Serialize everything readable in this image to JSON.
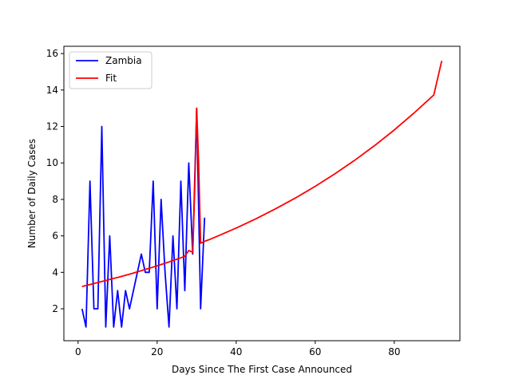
{
  "chart_data": {
    "type": "line",
    "title": "",
    "xlabel": "Days Since The First Case Announced",
    "ylabel": "Number of Daily Cases",
    "xlim": [
      -3.6,
      96.6
    ],
    "ylim": [
      0.25,
      16.4
    ],
    "xticks": [
      0,
      20,
      40,
      60,
      80
    ],
    "yticks": [
      2,
      4,
      6,
      8,
      10,
      12,
      14,
      16
    ],
    "grid": false,
    "legend": "upper-left",
    "series": [
      {
        "name": "Zambia",
        "color": "#0000ff",
        "x": [
          1,
          2,
          3,
          4,
          5,
          6,
          7,
          8,
          9,
          10,
          11,
          12,
          13,
          14,
          15,
          16,
          17,
          18,
          19,
          20,
          21,
          22,
          23,
          24,
          25,
          26,
          27,
          28,
          29,
          30,
          31,
          32
        ],
        "y": [
          2,
          1,
          9,
          2,
          2,
          12,
          1,
          6,
          1,
          3,
          1,
          3,
          2,
          3,
          4,
          5,
          4,
          4,
          9,
          2,
          8,
          4,
          1,
          6,
          2,
          9,
          3,
          10,
          5,
          13,
          2,
          7
        ]
      },
      {
        "name": "Fit",
        "color": "#ff0000",
        "x": [
          1,
          2,
          3,
          4,
          5,
          6,
          7,
          8,
          9,
          10,
          11,
          12,
          13,
          14,
          15,
          16,
          17,
          18,
          19,
          20,
          21,
          22,
          23,
          24,
          25,
          26,
          27,
          28,
          29,
          29.5,
          30,
          30.5,
          31,
          31.5,
          32,
          33,
          35,
          40,
          45,
          50,
          55,
          60,
          65,
          70,
          75,
          80,
          85,
          90,
          92
        ],
        "y": [
          3.22,
          3.28,
          3.33,
          3.39,
          3.44,
          3.5,
          3.55,
          3.61,
          3.67,
          3.72,
          3.78,
          3.84,
          3.9,
          3.96,
          4.03,
          4.09,
          4.16,
          4.22,
          4.29,
          4.36,
          4.43,
          4.5,
          4.57,
          4.65,
          4.72,
          4.8,
          4.88,
          5.2,
          5.1,
          8.5,
          13.0,
          10.0,
          5.6,
          5.65,
          5.7,
          5.78,
          5.96,
          6.43,
          6.94,
          7.49,
          8.08,
          8.72,
          9.41,
          10.15,
          10.95,
          11.81,
          12.74,
          13.73,
          15.6
        ]
      }
    ]
  }
}
